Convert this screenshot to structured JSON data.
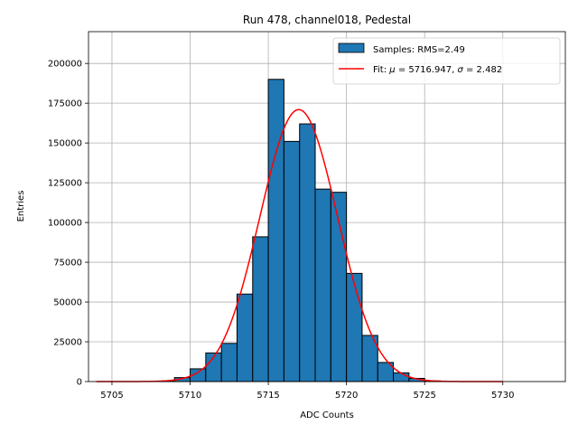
{
  "chart_data": {
    "type": "histogram",
    "title": "Run 478, channel018, Pedestal",
    "xlabel": "ADC Counts",
    "ylabel": "Entries",
    "xlim": [
      5703.5,
      5734
    ],
    "ylim": [
      0,
      220000
    ],
    "grid": true,
    "legend_position": "top-right",
    "x_ticks": [
      5705,
      5710,
      5715,
      5720,
      5725,
      5730
    ],
    "y_ticks": [
      0,
      25000,
      50000,
      75000,
      100000,
      125000,
      150000,
      175000,
      200000
    ],
    "bin_width": 1,
    "bins": [
      {
        "x": 5708,
        "value": 300
      },
      {
        "x": 5709,
        "value": 2500
      },
      {
        "x": 5710,
        "value": 8000
      },
      {
        "x": 5711,
        "value": 18000
      },
      {
        "x": 5712,
        "value": 24000
      },
      {
        "x": 5713,
        "value": 55000
      },
      {
        "x": 5714,
        "value": 91000
      },
      {
        "x": 5715,
        "value": 190000
      },
      {
        "x": 5716,
        "value": 151000
      },
      {
        "x": 5717,
        "value": 162000
      },
      {
        "x": 5718,
        "value": 121000
      },
      {
        "x": 5719,
        "value": 119000
      },
      {
        "x": 5720,
        "value": 68000
      },
      {
        "x": 5721,
        "value": 29000
      },
      {
        "x": 5722,
        "value": 12000
      },
      {
        "x": 5723,
        "value": 5500
      },
      {
        "x": 5724,
        "value": 2000
      },
      {
        "x": 5725,
        "value": 400
      }
    ],
    "fit": {
      "mu": 5716.947,
      "sigma": 2.482,
      "peak": 171000,
      "x_range": [
        5704,
        5730
      ]
    },
    "series": [
      {
        "name": "Samples: RMS=2.49",
        "color": "#1f77b4",
        "kind": "histogram"
      },
      {
        "name_prefix": "Fit: ",
        "mu_label": "μ",
        "mu_text": " = 5716.947, ",
        "sigma_label": "σ",
        "sigma_text": " = 2.482",
        "color": "#ff0000",
        "kind": "line"
      }
    ]
  }
}
